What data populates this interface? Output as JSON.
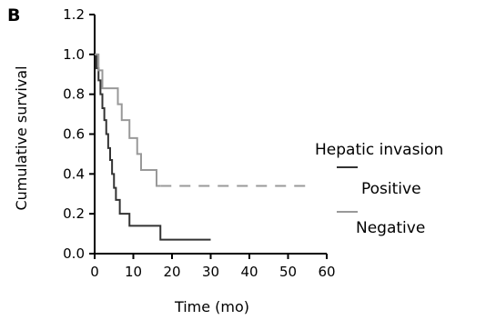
{
  "chart_data": {
    "type": "line",
    "panel_label": "B",
    "xlabel": "Time (mo)",
    "ylabel": "Cumulative survival",
    "xlim": [
      0,
      60
    ],
    "ylim": [
      0,
      1.2
    ],
    "xticks": [
      "0",
      "10",
      "20",
      "30",
      "40",
      "50",
      "60"
    ],
    "yticks": [
      "0.0",
      "0.2",
      "0.4",
      "0.6",
      "0.8",
      "1.0",
      "1.2"
    ],
    "legend_title": "Hepatic invasion",
    "legend_position": "right",
    "grid": false,
    "series": [
      {
        "name": "Positive",
        "color": "#333333",
        "style": "solid",
        "points": [
          [
            0,
            1.0
          ],
          [
            0.5,
            1.0
          ],
          [
            0.5,
            0.93
          ],
          [
            1,
            0.93
          ],
          [
            1,
            0.87
          ],
          [
            1.5,
            0.87
          ],
          [
            1.5,
            0.8
          ],
          [
            2,
            0.8
          ],
          [
            2,
            0.73
          ],
          [
            2.5,
            0.73
          ],
          [
            2.5,
            0.67
          ],
          [
            3,
            0.67
          ],
          [
            3,
            0.6
          ],
          [
            3.5,
            0.6
          ],
          [
            3.5,
            0.53
          ],
          [
            4,
            0.53
          ],
          [
            4,
            0.47
          ],
          [
            4.5,
            0.47
          ],
          [
            4.5,
            0.4
          ],
          [
            5,
            0.4
          ],
          [
            5,
            0.33
          ],
          [
            5.5,
            0.33
          ],
          [
            5.5,
            0.27
          ],
          [
            6.5,
            0.27
          ],
          [
            6.5,
            0.2
          ],
          [
            9,
            0.2
          ],
          [
            9,
            0.14
          ],
          [
            17,
            0.14
          ],
          [
            17,
            0.07
          ],
          [
            30,
            0.07
          ]
        ]
      },
      {
        "name": "Negative",
        "color": "#999999",
        "style": "solid-then-dashed",
        "dash_start_x": 17,
        "points": [
          [
            0,
            1.0
          ],
          [
            1,
            1.0
          ],
          [
            1,
            0.92
          ],
          [
            2,
            0.92
          ],
          [
            2,
            0.83
          ],
          [
            6,
            0.83
          ],
          [
            6,
            0.75
          ],
          [
            7,
            0.75
          ],
          [
            7,
            0.67
          ],
          [
            9,
            0.67
          ],
          [
            9,
            0.58
          ],
          [
            11,
            0.58
          ],
          [
            11,
            0.5
          ],
          [
            12,
            0.5
          ],
          [
            12,
            0.42
          ],
          [
            16,
            0.42
          ],
          [
            16,
            0.34
          ],
          [
            17,
            0.34
          ],
          [
            56,
            0.34
          ]
        ]
      }
    ]
  }
}
